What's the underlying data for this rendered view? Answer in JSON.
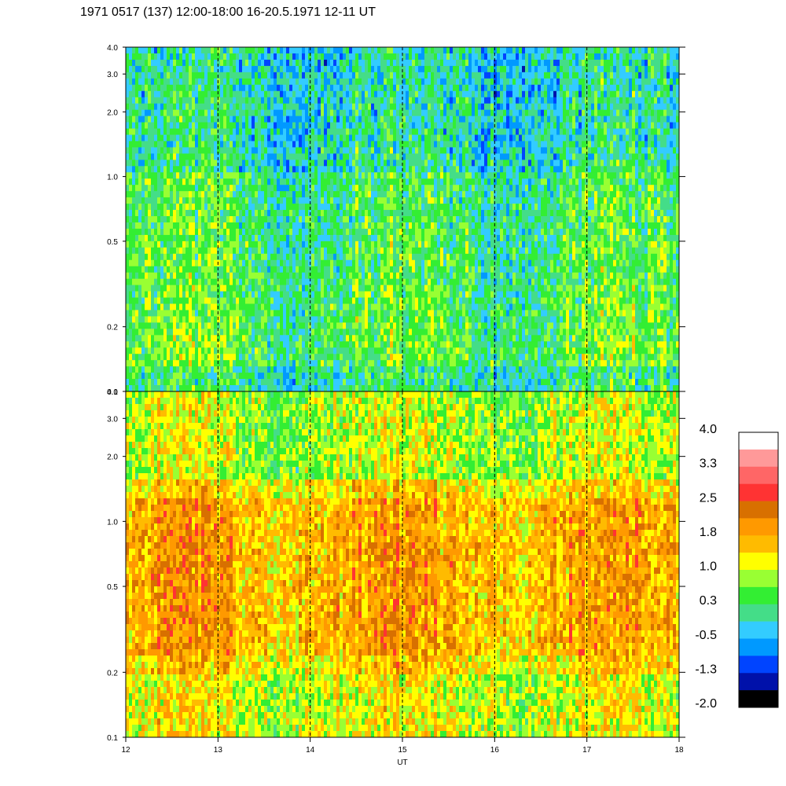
{
  "title": "1971 0517 (137) 12:00-18:00 16-20.5.1971 12-11 UT",
  "chart_data": {
    "type": "heatmap",
    "xlabel": "UT",
    "x_ticks": [
      "12",
      "13",
      "14",
      "15",
      "16",
      "17",
      "18"
    ],
    "xlim": [
      12,
      18
    ],
    "y_scale": "log",
    "panels": [
      {
        "name": "",
        "ylim": [
          0.1,
          4.0
        ],
        "y_ticks": [
          "4.0",
          "3.0",
          "2.0",
          "1.0",
          "0.5",
          "0.2",
          "0.1"
        ],
        "dominant_level": 0.3
      },
      {
        "name": "",
        "ylim": [
          0.1,
          4.0
        ],
        "y_ticks": [
          "4.0",
          "3.0",
          "2.0",
          "1.0",
          "0.5",
          "0.2",
          "0.1"
        ],
        "dominant_level": 1.4
      }
    ],
    "dashed_gridlines_x": [
      13,
      14,
      15,
      16,
      17
    ],
    "colorbar": {
      "tick_labels": [
        "4.0",
        "3.3",
        "2.5",
        "1.8",
        "1.0",
        "0.3",
        "-0.5",
        "-1.3",
        "-2.0"
      ],
      "colors_top_to_bottom": [
        "#ffffff",
        "#ff9999",
        "#ff6666",
        "#ff3333",
        "#d87000",
        "#ff9900",
        "#ffbb00",
        "#ffff00",
        "#99ff33",
        "#33ee33",
        "#44dd88",
        "#33ccff",
        "#0099ff",
        "#0044ff",
        "#0011aa",
        "#000000"
      ]
    }
  }
}
